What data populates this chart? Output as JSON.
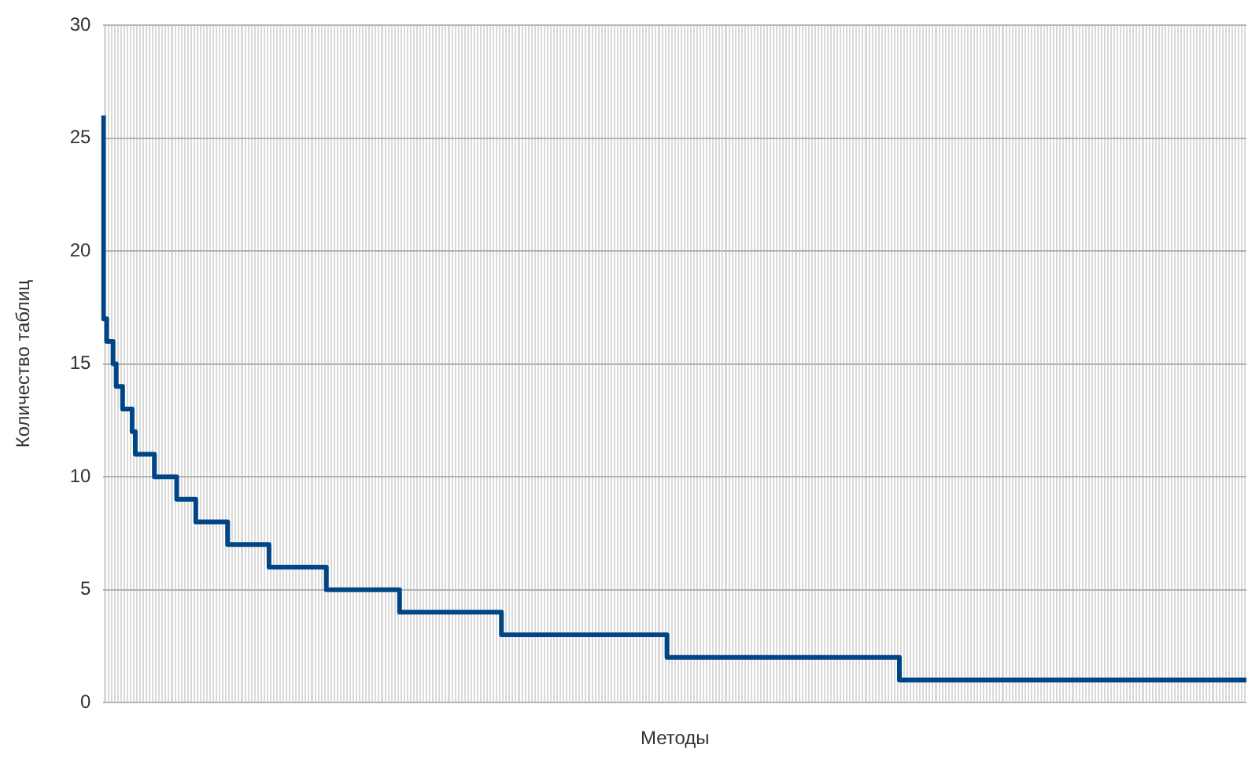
{
  "chart_data": {
    "type": "step",
    "xlabel": "Методы",
    "ylabel": "Количество таблиц",
    "categories": [
      null,
      null,
      null,
      null,
      null,
      null,
      null,
      null,
      null,
      null,
      null,
      null,
      null,
      null,
      null,
      null,
      null,
      null,
      null,
      null,
      null,
      null,
      null,
      null,
      null,
      null,
      null,
      null,
      null,
      null,
      null,
      null,
      null,
      null,
      null,
      null,
      null,
      null,
      null,
      null,
      null,
      null,
      null,
      null,
      null,
      null,
      null,
      null,
      null,
      null,
      null,
      null,
      null,
      null,
      null,
      null,
      null,
      null,
      null,
      null,
      null,
      null,
      null,
      null,
      null,
      null,
      null,
      null,
      null,
      null,
      null,
      null,
      null,
      null,
      null,
      null,
      null,
      null,
      null,
      null,
      null,
      null,
      null,
      null,
      null,
      null,
      null,
      null,
      null,
      null,
      null,
      null,
      null,
      null,
      null,
      null,
      null,
      null,
      null,
      null,
      null,
      null,
      null,
      null,
      null,
      null,
      null,
      null,
      null,
      null,
      null,
      null,
      null,
      null,
      null,
      null,
      null,
      null,
      null,
      null,
      null,
      null,
      null,
      null,
      null,
      null,
      null,
      null,
      null,
      null,
      null,
      null,
      null,
      null,
      null,
      null,
      null,
      null,
      null,
      null,
      null,
      null,
      null,
      null,
      null,
      null,
      null,
      null,
      null,
      null,
      null,
      null,
      null,
      null,
      null,
      null,
      null,
      null,
      null,
      null,
      null,
      null,
      null,
      null,
      null,
      null,
      null,
      null,
      null,
      null,
      null,
      null,
      null,
      null,
      null,
      null,
      null,
      null,
      null,
      null,
      null,
      null,
      null,
      null,
      null,
      null,
      null,
      null,
      null,
      null,
      null,
      null,
      null,
      null,
      null,
      null,
      null,
      null,
      null,
      null,
      null,
      null,
      null,
      null,
      null,
      null,
      null,
      null,
      null,
      null,
      null,
      null,
      null,
      null,
      null,
      null,
      null,
      null,
      null,
      null,
      null,
      null,
      null,
      null,
      null,
      null,
      null,
      null,
      null,
      null,
      null,
      null,
      null,
      null,
      null,
      null,
      null,
      null,
      null,
      null,
      null,
      null,
      null,
      null,
      null,
      null,
      null,
      null,
      null,
      null,
      null,
      null,
      null,
      null,
      null,
      null,
      null,
      null,
      null,
      null,
      null,
      null,
      null,
      null,
      null,
      null,
      null,
      null,
      null,
      null,
      null,
      null,
      null,
      null,
      null,
      null,
      null,
      null,
      null,
      null,
      null,
      null,
      null,
      null,
      null,
      null,
      null,
      null,
      null,
      null,
      null,
      null,
      null,
      null,
      null,
      null,
      null,
      null,
      null,
      null,
      null,
      null,
      null,
      null,
      null,
      null,
      null,
      null,
      null,
      null,
      null,
      null,
      null,
      null,
      null,
      null,
      null,
      null,
      null,
      null,
      null,
      null,
      null,
      null,
      null,
      null,
      null,
      null,
      null,
      null,
      null,
      null,
      null,
      null,
      null,
      null,
      null,
      null,
      null,
      null,
      null,
      null,
      null,
      null,
      null,
      null,
      null,
      null,
      null,
      null,
      null,
      null,
      null,
      null,
      null,
      null,
      null,
      null,
      null,
      null
    ],
    "series": [
      {
        "color": "#004586",
        "values": [
          26,
          17,
          16,
          16,
          15,
          14,
          14,
          13,
          13,
          13,
          12,
          11,
          11,
          11,
          11,
          11,
          11,
          10,
          10,
          10,
          10,
          10,
          10,
          10,
          9,
          9,
          9,
          9,
          9,
          9,
          8,
          8,
          8,
          8,
          8,
          8,
          8,
          8,
          8,
          8,
          7,
          7,
          7,
          7,
          7,
          7,
          7,
          7,
          7,
          7,
          7,
          7,
          7,
          6,
          6,
          6,
          6,
          6,
          6,
          6,
          6,
          6,
          6,
          6,
          6,
          6,
          6,
          6,
          6,
          6,
          6,
          5,
          5,
          5,
          5,
          5,
          5,
          5,
          5,
          5,
          5,
          5,
          5,
          5,
          5,
          5,
          5,
          5,
          5,
          5,
          5,
          5,
          5,
          5,
          4,
          4,
          4,
          4,
          4,
          4,
          4,
          4,
          4,
          4,
          4,
          4,
          4,
          4,
          4,
          4,
          4,
          4,
          4,
          4,
          4,
          4,
          4,
          4,
          4,
          4,
          4,
          4,
          4,
          4,
          4,
          4,
          3,
          3,
          3,
          3,
          3,
          3,
          3,
          3,
          3,
          3,
          3,
          3,
          3,
          3,
          3,
          3,
          3,
          3,
          3,
          3,
          3,
          3,
          3,
          3,
          3,
          3,
          3,
          3,
          3,
          3,
          3,
          3,
          3,
          3,
          3,
          3,
          3,
          3,
          3,
          3,
          3,
          3,
          3,
          3,
          3,
          3,
          3,
          3,
          3,
          3,
          3,
          3,
          2,
          2,
          2,
          2,
          2,
          2,
          2,
          2,
          2,
          2,
          2,
          2,
          2,
          2,
          2,
          2,
          2,
          2,
          2,
          2,
          2,
          2,
          2,
          2,
          2,
          2,
          2,
          2,
          2,
          2,
          2,
          2,
          2,
          2,
          2,
          2,
          2,
          2,
          2,
          2,
          2,
          2,
          2,
          2,
          2,
          2,
          2,
          2,
          2,
          2,
          2,
          2,
          2,
          2,
          2,
          2,
          2,
          2,
          2,
          2,
          2,
          2,
          2,
          2,
          2,
          2,
          2,
          2,
          2,
          2,
          2,
          2,
          2,
          1,
          1,
          1,
          1,
          1,
          1,
          1,
          1,
          1,
          1,
          1,
          1,
          1,
          1,
          1,
          1,
          1,
          1,
          1,
          1,
          1,
          1,
          1,
          1,
          1,
          1,
          1,
          1,
          1,
          1,
          1,
          1,
          1,
          1,
          1,
          1,
          1,
          1,
          1,
          1,
          1,
          1,
          1,
          1,
          1,
          1,
          1,
          1,
          1,
          1,
          1,
          1,
          1,
          1,
          1,
          1,
          1,
          1,
          1,
          1,
          1,
          1,
          1,
          1,
          1,
          1,
          1,
          1,
          1,
          1,
          1,
          1,
          1,
          1,
          1,
          1,
          1,
          1,
          1,
          1,
          1,
          1,
          1,
          1,
          1,
          1,
          1,
          1,
          1,
          1,
          1,
          1,
          1,
          1,
          1,
          1,
          1,
          1,
          1,
          1,
          1,
          1,
          1,
          1,
          1,
          1,
          1,
          1,
          1
        ]
      }
    ],
    "ylim": [
      0,
      30
    ],
    "yticks": [
      0,
      5,
      10,
      15,
      20,
      25,
      30
    ],
    "grid": true,
    "tick_labels": "y"
  }
}
